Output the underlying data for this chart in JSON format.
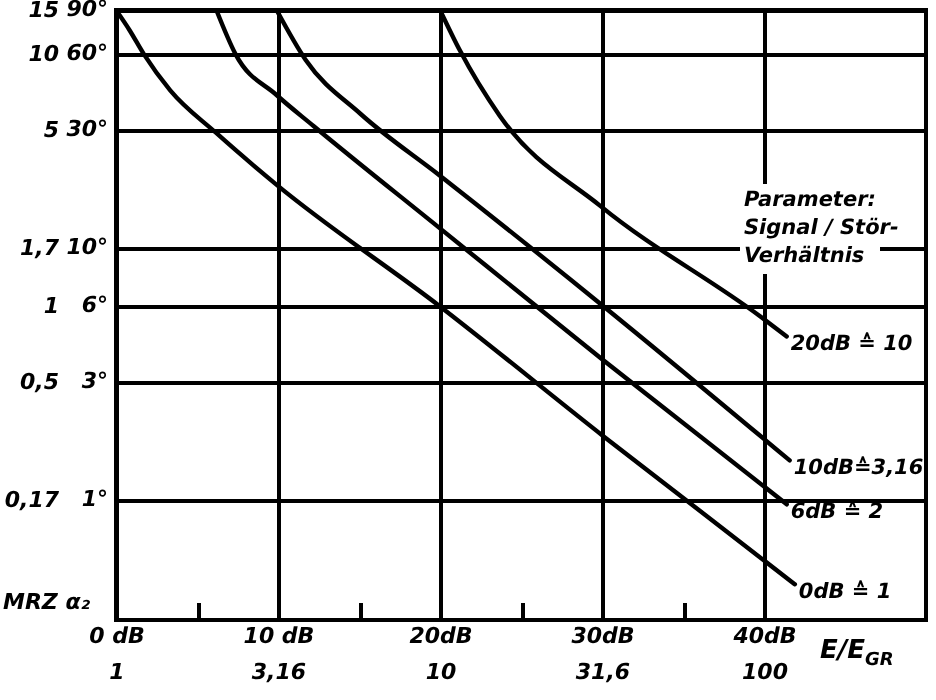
{
  "chart_data": {
    "type": "line",
    "xlabel": "E/E$_{GR}$",
    "ylabel": "MRZ α₂",
    "legend_title": "Parameter:\nSignal / Stör-\nVerhältnis",
    "annotations": [
      "90°",
      "60°",
      "30°",
      "10°",
      "6°",
      "3°",
      "1°"
    ],
    "xlim": [
      1,
      316.2
    ],
    "xticks": [
      1,
      {
        "value": 3.16,
        "label": "3,16"
      },
      10,
      {
        "value": 31.6,
        "label": "31,6"
      },
      100
    ],
    "x2lim": [
      0,
      50
    ],
    "x2ticks": [
      {
        "value": 0,
        "label": "0 dB"
      },
      {
        "value": 5,
        "label": null
      },
      {
        "value": 10,
        "label": "10 dB"
      },
      {
        "value": 15,
        "label": null
      },
      {
        "value": 20,
        "label": "20dB"
      },
      {
        "value": 25,
        "label": null
      },
      {
        "value": 30,
        "label": "30dB"
      },
      {
        "value": 35,
        "label": null
      },
      {
        "value": 40,
        "label": "40dB"
      }
    ],
    "ylim": [
      0.057,
      15
    ],
    "log": "xy",
    "yticks": [
      15,
      10,
      5,
      {
        "value": 1.7,
        "label": "1,7"
      },
      1,
      {
        "value": 0.5,
        "label": "0,5"
      },
      {
        "value": 0.17,
        "label": "0,17"
      }
    ],
    "grid": true,
    "series": [
      {
        "name": "20dB ≙ 10",
        "color": "#000000",
        "x": [
          10,
          11.5,
          15.3,
          31.3,
          97.7,
          117.5
        ],
        "values": [
          15,
          10.4,
          5.7,
          2.5,
          0.91,
          0.76
        ]
      },
      {
        "name": "10dB≙3,16",
        "color": "#000000",
        "x": [
          3.13,
          3.85,
          5.69,
          10,
          32.0,
          120
        ],
        "values": [
          15,
          9.5,
          5.8,
          3.3,
          1.0,
          0.245
        ]
      },
      {
        "name": "6dB ≙ 2",
        "color": "#000000",
        "x": [
          2.04,
          2.34,
          3.13,
          4.07,
          10,
          32.0,
          117.5
        ],
        "values": [
          15,
          10,
          6.9,
          5.2,
          2.04,
          0.61,
          0.164
        ]
      },
      {
        "name": "0dB ≙ 1",
        "color": "#000000",
        "x": [
          1,
          1.1,
          1.22,
          1.47,
          2.03,
          3.12,
          10,
          32.0,
          124.5
        ],
        "values": [
          15,
          12.5,
          10,
          7.2,
          4.9,
          3.05,
          1.0,
          0.305,
          0.079
        ]
      }
    ]
  }
}
